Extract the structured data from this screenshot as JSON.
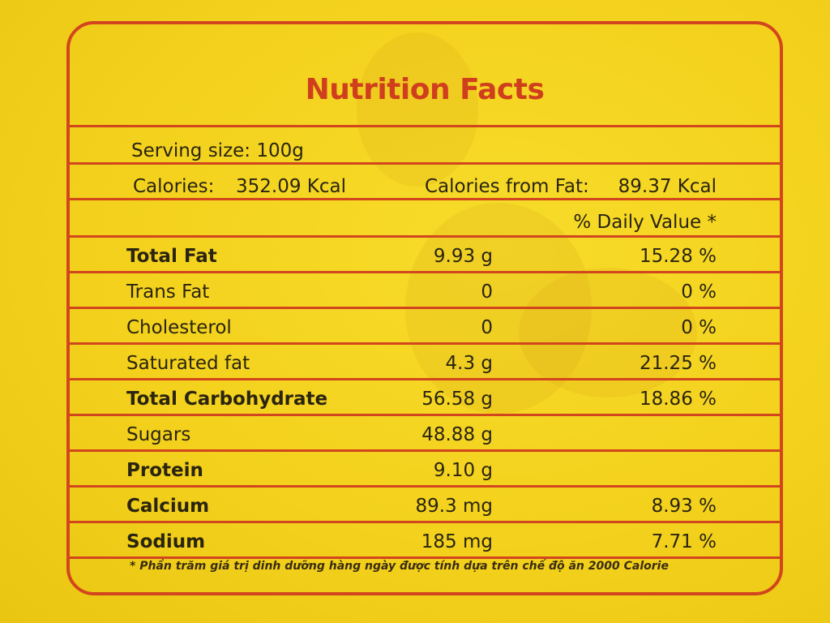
{
  "title": "Nutrition Facts",
  "serving": {
    "label": "Serving size:",
    "value": "100g"
  },
  "calories": {
    "label": "Calories:",
    "value": "352.09  Kcal",
    "from_fat_label": "Calories from Fat:",
    "from_fat_value": "89.37 Kcal"
  },
  "daily_value_header": "% Daily Value *",
  "nutrients": [
    {
      "name": "Total Fat",
      "amount": "9.93 g",
      "dv": "15.28 %"
    },
    {
      "name": "Trans Fat",
      "amount": "0",
      "dv": "0 %"
    },
    {
      "name": "Cholesterol",
      "amount": "0",
      "dv": "0 %"
    },
    {
      "name": "Saturated fat",
      "amount": "4.3 g",
      "dv": "21.25 %"
    },
    {
      "name": "Total Carbohydrate",
      "amount": "56.58 g",
      "dv": "18.86 %"
    },
    {
      "name": "Sugars",
      "amount": "48.88 g",
      "dv": ""
    },
    {
      "name": "Protein",
      "amount": "9.10 g",
      "dv": ""
    },
    {
      "name": "Calcium",
      "amount": "89.3 mg",
      "dv": "8.93 %"
    },
    {
      "name": "Sodium",
      "amount": "185 mg",
      "dv": "7.71 %"
    }
  ],
  "footnote": "* Phần trăm giá trị dinh dưỡng hàng ngày được tính dựa trên chế độ ăn 2000 Calorie",
  "colors": {
    "accent": "#d2461e",
    "background": "#f3d11c",
    "text": "#2a2410"
  }
}
